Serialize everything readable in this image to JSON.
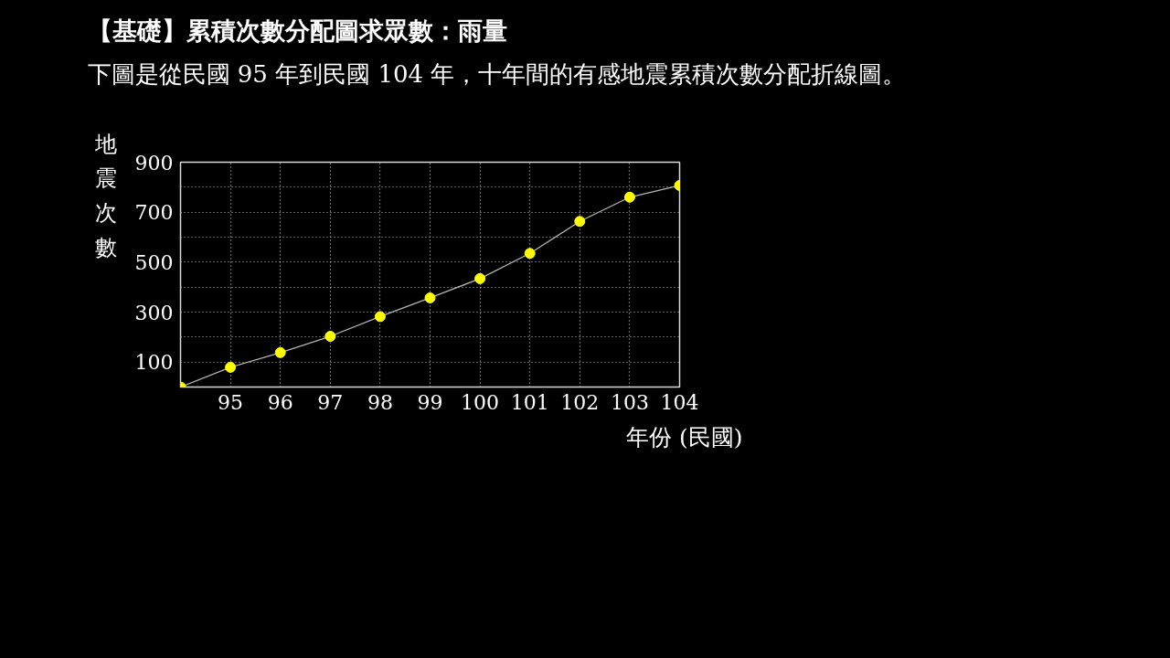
{
  "chart_data": {
    "type": "line",
    "title": "【基礎】累積次數分配圖求眾數：雨量",
    "subtitle": "下圖是從民國 95 年到民國 104 年，十年間的有感地震累積次數分配折線圖。",
    "xlabel": "年份 (民國)",
    "ylabel": "地震次數",
    "x": [
      94,
      95,
      96,
      97,
      98,
      99,
      100,
      101,
      102,
      103,
      104
    ],
    "series": [
      {
        "color": "#ffff00",
        "values": [
          0,
          79,
          138,
          203,
          282,
          357,
          434,
          535,
          663,
          760,
          807
        ]
      }
    ],
    "xlim": [
      94,
      104
    ],
    "xticks": [
      95,
      96,
      97,
      98,
      99,
      100,
      101,
      102,
      103,
      104
    ],
    "ylim": [
      0,
      900
    ],
    "yticks": [
      100,
      {
        "value": 200,
        "label": null
      },
      300,
      {
        "value": 400,
        "label": null
      },
      500,
      {
        "value": 600,
        "label": null
      },
      700,
      {
        "value": 800,
        "label": null
      },
      900
    ],
    "grid": true,
    "marker": "circle",
    "line_style": "solid"
  }
}
